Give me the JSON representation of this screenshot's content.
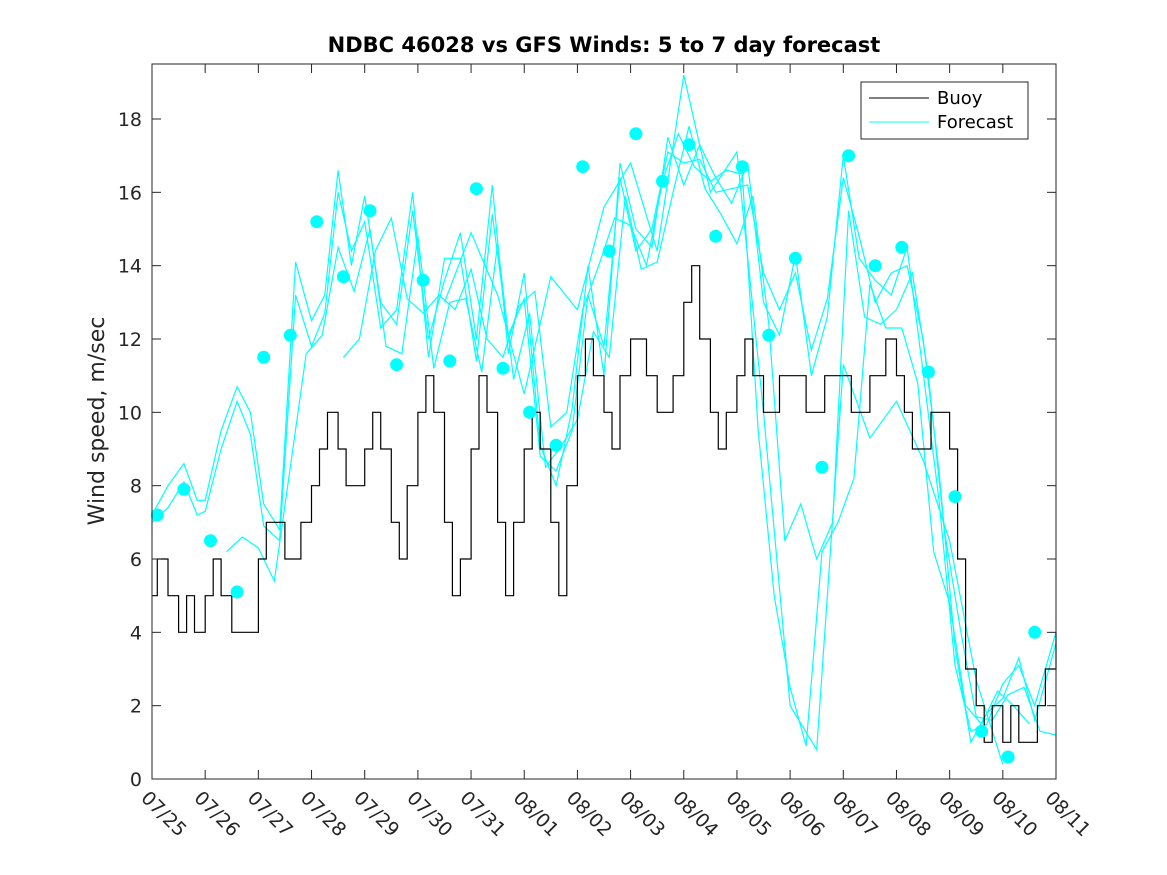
{
  "chart_data": {
    "type": "line",
    "title": "NDBC 46028 vs GFS Winds: 5 to 7 day forecast",
    "xlabel": "",
    "ylabel": "Wind speed, m/sec",
    "xlim": [
      "07/25",
      "08/11"
    ],
    "ylim": [
      0,
      19.5
    ],
    "x_ticks": [
      "07/25",
      "07/26",
      "07/27",
      "07/28",
      "07/29",
      "07/30",
      "07/31",
      "08/01",
      "08/02",
      "08/03",
      "08/04",
      "08/05",
      "08/06",
      "08/07",
      "08/08",
      "08/09",
      "08/10",
      "08/11"
    ],
    "y_ticks": [
      0,
      2,
      4,
      6,
      8,
      10,
      12,
      14,
      16,
      18
    ],
    "grid": false,
    "legend": {
      "placement": "top-right",
      "entries": [
        "Buoy",
        "Forecast"
      ]
    },
    "colors": {
      "buoy": "#000000",
      "forecast": "#00ffff",
      "marker": "#00ffff",
      "axes": "#262626"
    },
    "series": [
      {
        "name": "Buoy",
        "x_days": [
          0,
          0.1,
          0.3,
          0.5,
          0.65,
          0.8,
          1.0,
          1.15,
          1.3,
          1.5,
          1.65,
          1.8,
          2.0,
          2.15,
          2.3,
          2.5,
          2.65,
          2.8,
          3.0,
          3.15,
          3.3,
          3.5,
          3.65,
          3.8,
          4.0,
          4.15,
          4.3,
          4.5,
          4.65,
          4.8,
          5.0,
          5.15,
          5.3,
          5.5,
          5.65,
          5.8,
          6.0,
          6.15,
          6.3,
          6.5,
          6.65,
          6.8,
          7.0,
          7.15,
          7.3,
          7.5,
          7.65,
          7.8,
          8.0,
          8.15,
          8.3,
          8.5,
          8.65,
          8.8,
          9.0,
          9.15,
          9.3,
          9.5,
          9.65,
          9.8,
          10.0,
          10.15,
          10.3,
          10.5,
          10.65,
          10.8,
          11.0,
          11.15,
          11.3,
          11.5,
          11.65,
          11.8,
          12.0,
          12.15,
          12.3,
          12.5,
          12.65,
          12.8,
          13.0,
          13.15,
          13.3,
          13.5,
          13.65,
          13.8,
          14.0,
          14.15,
          14.3,
          14.5,
          14.65,
          14.8,
          15.0,
          15.15,
          15.3,
          15.5,
          15.65,
          15.8,
          16.0,
          16.15,
          16.3,
          16.5,
          16.65,
          16.8,
          17.0
        ],
        "values": [
          5,
          6,
          5,
          4,
          5,
          4,
          5,
          6,
          5,
          4,
          4,
          4,
          6,
          7,
          7,
          6,
          6,
          7,
          8,
          9,
          10,
          9,
          8,
          8,
          9,
          10,
          9,
          7,
          6,
          8,
          10,
          11,
          10,
          7,
          5,
          6,
          9,
          11,
          10,
          7,
          5,
          7,
          9,
          10,
          9,
          7,
          5,
          8,
          11,
          12,
          11,
          10,
          9,
          11,
          12,
          12,
          11,
          10,
          10,
          11,
          13,
          14,
          12,
          10,
          9,
          10,
          11,
          12,
          11,
          10,
          10,
          11,
          11,
          11,
          10,
          10,
          11,
          11,
          11,
          10,
          10,
          11,
          11,
          12,
          11,
          10,
          9,
          9,
          10,
          10,
          9,
          6,
          3,
          2,
          1,
          2,
          1,
          2,
          1,
          1,
          2,
          3,
          4
        ]
      }
    ],
    "forecast_series": [
      {
        "x_days": [
          0,
          0.3,
          0.6,
          0.85,
          1.0,
          1.3,
          1.6,
          1.85,
          2.1,
          2.4,
          2.7,
          3.0,
          3.25,
          3.5,
          3.75,
          4.0,
          4.3,
          4.6,
          4.9,
          5.2,
          5.5,
          5.8,
          6.1,
          6.4,
          6.7,
          7.0,
          7.3,
          7.6,
          7.9,
          8.2,
          8.5,
          8.8,
          9.1,
          9.4,
          9.7,
          10.0,
          10.3,
          10.6,
          10.9,
          11.2,
          11.5,
          11.8,
          12.1,
          12.4,
          12.7,
          13.0,
          13.3,
          13.6,
          13.9,
          14.2,
          14.5,
          14.8,
          15.1,
          15.4,
          15.7,
          16.0,
          16.3,
          16.6,
          17.0
        ],
        "values": [
          7.2,
          8.0,
          8.6,
          7.6,
          7.6,
          9.5,
          10.7,
          10.0,
          7.5,
          6.8,
          14.1,
          12.5,
          13.2,
          16.6,
          14.0,
          15.9,
          13.0,
          12.4,
          15.5,
          12.0,
          13.6,
          14.9,
          12.0,
          16.2,
          11.6,
          13.8,
          9.1,
          8.0,
          10.1,
          14.0,
          11.0,
          16.8,
          15.0,
          14.5,
          17.5,
          16.2,
          17.3,
          16.4,
          15.7,
          16.8,
          13.0,
          12.1,
          14.3,
          11.0,
          12.6,
          17.0,
          14.2,
          13.6,
          13.2,
          14.5,
          11.1,
          7.6,
          3.1,
          1.3,
          1.5,
          2.6,
          3.1,
          2.0,
          4.0
        ]
      },
      {
        "x_days": [
          0,
          0.3,
          0.6,
          0.85,
          1.0,
          1.3,
          1.6,
          1.85,
          2.1,
          2.4,
          2.7,
          3.0,
          3.25,
          3.5,
          3.75,
          4.0,
          4.3,
          4.6,
          4.9,
          5.2,
          5.5,
          5.8,
          6.1,
          6.4,
          6.7,
          7.0,
          7.3,
          7.6,
          7.9,
          8.2,
          8.5,
          8.8,
          9.1,
          9.4,
          9.7,
          10.0,
          10.3,
          10.6,
          10.9,
          11.2,
          11.5,
          11.8,
          12.1,
          12.4,
          12.7,
          13.0,
          13.3,
          13.6,
          13.9,
          14.2,
          14.5,
          14.8,
          15.1,
          15.4,
          15.7,
          16.0,
          16.3,
          16.6,
          17.0
        ],
        "values": [
          7.0,
          7.4,
          8.1,
          7.2,
          7.3,
          9.0,
          10.3,
          9.4,
          6.9,
          6.5,
          13.2,
          11.8,
          12.7,
          16.0,
          14.4,
          15.2,
          12.3,
          12.8,
          16.0,
          11.5,
          14.2,
          14.2,
          11.4,
          15.4,
          12.1,
          13.1,
          8.8,
          8.4,
          9.5,
          13.2,
          11.8,
          16.4,
          14.4,
          15.0,
          17.1,
          16.8,
          16.9,
          16.0,
          16.1,
          16.2,
          13.8,
          12.8,
          13.8,
          11.7,
          13.1,
          16.4,
          14.8,
          13.0,
          13.8,
          14.0,
          12.0,
          8.4,
          3.6,
          1.0,
          1.8,
          2.2,
          3.3,
          1.6,
          3.7
        ]
      },
      {
        "x_days": [
          1.4,
          1.7,
          2.0,
          2.3,
          2.6,
          2.9,
          3.2,
          3.5,
          3.8,
          4.1,
          4.4,
          4.7,
          5.0,
          5.3,
          5.6,
          5.9,
          6.2,
          6.5,
          6.8,
          7.1,
          7.4,
          7.7,
          8.0,
          8.3,
          8.6,
          8.9,
          9.2,
          9.5,
          9.8,
          10.1,
          10.4,
          10.7,
          11.0,
          11.3,
          11.6,
          11.9,
          12.2,
          12.5,
          12.8,
          13.1,
          13.4,
          13.7,
          14.0,
          14.3,
          14.6,
          14.9,
          15.2,
          15.5,
          15.8,
          16.1,
          16.4,
          16.7,
          17.0
        ],
        "values": [
          6.2,
          6.6,
          6.3,
          5.4,
          8.5,
          11.6,
          12.1,
          14.5,
          13.3,
          15.0,
          11.8,
          11.6,
          14.8,
          11.2,
          13.0,
          13.1,
          11.1,
          14.6,
          10.9,
          12.7,
          8.5,
          9.1,
          9.8,
          12.2,
          11.5,
          15.9,
          13.9,
          14.1,
          16.0,
          17.8,
          16.1,
          15.4,
          14.6,
          15.9,
          12.4,
          6.5,
          7.5,
          6.0,
          7.0,
          15.5,
          12.6,
          12.4,
          12.8,
          13.8,
          11.0,
          6.8,
          4.1,
          1.7,
          1.6,
          2.3,
          2.5,
          1.3,
          1.2
        ]
      },
      {
        "x_days": [
          3.6,
          3.9,
          4.2,
          4.5,
          4.8,
          5.1,
          5.4,
          5.7,
          6.0,
          6.3,
          6.6,
          6.9,
          7.2,
          7.5,
          7.8,
          8.1,
          8.4,
          8.7,
          9.0,
          9.3,
          9.6,
          9.9,
          10.2,
          10.5,
          10.8,
          11.1,
          11.4,
          11.7,
          12.0,
          12.3,
          12.6,
          12.9,
          13.2,
          13.5,
          13.8,
          14.1,
          14.4,
          14.7,
          15.0,
          15.3,
          15.6,
          15.9,
          16.2,
          16.5
        ],
        "values": [
          11.5,
          12.0,
          14.4,
          15.3,
          13.1,
          12.7,
          13.2,
          12.8,
          13.9,
          12.0,
          11.5,
          12.9,
          13.3,
          9.6,
          10.0,
          12.8,
          14.0,
          15.3,
          15.1,
          14.0,
          16.3,
          17.6,
          16.7,
          16.3,
          16.6,
          16.5,
          9.5,
          5.0,
          2.5,
          0.9,
          6.2,
          7.0,
          8.2,
          13.5,
          12.3,
          12.3,
          10.8,
          6.2,
          4.8,
          2.0,
          1.5,
          2.4,
          2.0,
          1.5
        ]
      },
      {
        "x_days": [
          5.5,
          6.0,
          6.5,
          7.0,
          7.5,
          8.0,
          8.5,
          9.0,
          9.5,
          10.0,
          10.5,
          11.0,
          11.5,
          12.0,
          12.5,
          13.0,
          13.5,
          14.0,
          14.5,
          15.0,
          15.5,
          16.0
        ],
        "values": [
          13.0,
          14.9,
          13.2,
          10.5,
          13.7,
          12.8,
          15.6,
          16.8,
          14.4,
          19.2,
          16.0,
          17.1,
          10.0,
          2.0,
          0.8,
          11.3,
          9.3,
          10.3,
          8.7,
          6.5,
          2.7,
          0.4
        ]
      }
    ],
    "markers": {
      "x_days": [
        0.1,
        0.6,
        1.1,
        1.6,
        2.1,
        2.6,
        3.1,
        3.6,
        4.1,
        4.6,
        5.1,
        5.6,
        6.1,
        6.6,
        7.1,
        7.6,
        8.1,
        8.6,
        9.1,
        9.6,
        10.1,
        10.6,
        11.1,
        11.6,
        12.1,
        12.6,
        13.1,
        13.6,
        14.1,
        14.6,
        15.1,
        15.6,
        16.1,
        16.6
      ],
      "values": [
        7.2,
        7.9,
        6.5,
        5.1,
        11.5,
        12.1,
        15.2,
        13.7,
        15.5,
        11.3,
        13.6,
        11.4,
        16.1,
        11.2,
        10.0,
        9.1,
        16.7,
        14.4,
        17.6,
        16.3,
        17.3,
        14.8,
        16.7,
        12.1,
        14.2,
        8.5,
        17.0,
        14.0,
        14.5,
        11.1,
        7.7,
        1.3,
        0.6,
        4.0
      ]
    }
  }
}
